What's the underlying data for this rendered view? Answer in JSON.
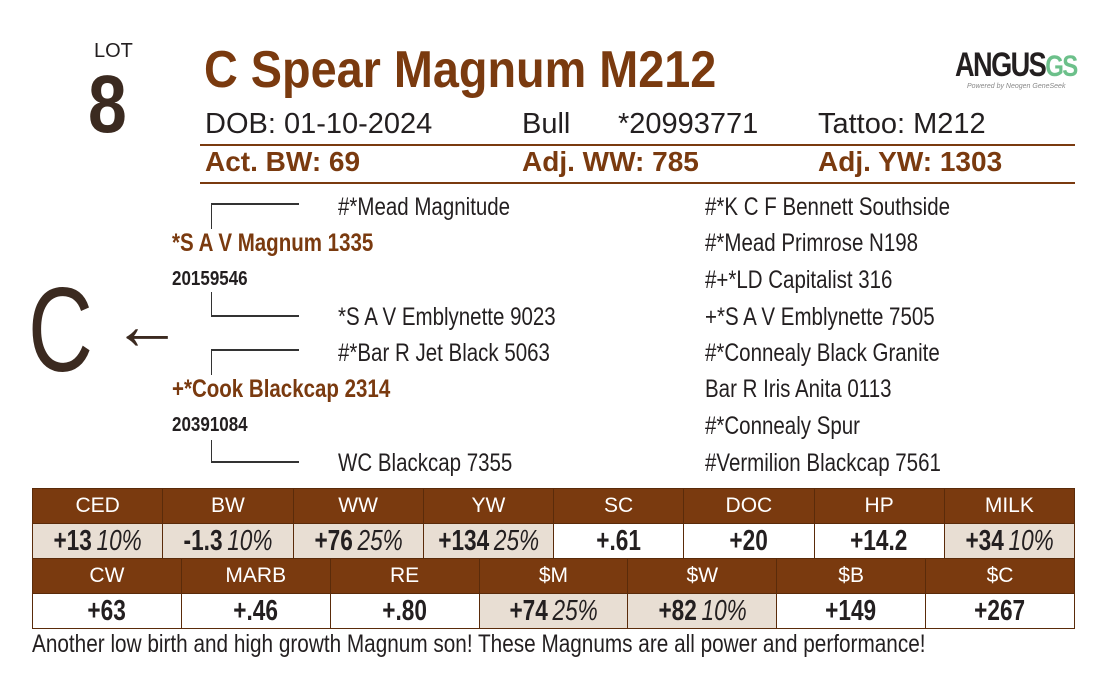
{
  "lot": {
    "label": "LOT",
    "number": "8"
  },
  "title": "C Spear Magnum M212",
  "logo": {
    "main": "ANGUS",
    "suffix": "GS",
    "tagline": "Powered by Neogen GeneSeek"
  },
  "info": {
    "dob_label": "DOB:",
    "dob": "01-10-2024",
    "sex": "Bull",
    "reg": "*20993771",
    "tattoo_label": "Tattoo:",
    "tattoo": "M212"
  },
  "weights": {
    "bw": "Act. BW: 69",
    "ww": "Adj. WW: 785",
    "yw": "Adj. YW: 1303"
  },
  "marker": {
    "letter": "C",
    "arrow": "←"
  },
  "pedigree": {
    "sire": {
      "name": "*S A V Magnum 1335",
      "reg": "20159546",
      "sire": "#*Mead Magnitude",
      "dam": "*S A V Emblynette 9023"
    },
    "dam": {
      "name": "+*Cook Blackcap 2314",
      "reg": "20391084",
      "sire": "#*Bar R Jet Black 5063",
      "dam": "WC Blackcap 7355"
    },
    "third": [
      "#*K C F Bennett Southside",
      "#*Mead Primrose N198",
      "#+*LD Capitalist 316",
      "+*S A V Emblynette 7505",
      "#*Connealy Black Granite",
      "Bar R Iris Anita 0113",
      "#*Connealy Spur",
      "#Vermilion Blackcap 7561"
    ]
  },
  "epds_row1": [
    {
      "label": "CED",
      "value": "+13",
      "pct": "10%"
    },
    {
      "label": "BW",
      "value": "-1.3",
      "pct": "10%"
    },
    {
      "label": "WW",
      "value": "+76",
      "pct": "25%"
    },
    {
      "label": "YW",
      "value": "+134",
      "pct": "25%"
    },
    {
      "label": "SC",
      "value": "+.61"
    },
    {
      "label": "DOC",
      "value": "+20"
    },
    {
      "label": "HP",
      "value": "+14.2"
    },
    {
      "label": "MILK",
      "value": "+34",
      "pct": "10%"
    }
  ],
  "epds_row2": [
    {
      "label": "CW",
      "value": "+63"
    },
    {
      "label": "MARB",
      "value": "+.46"
    },
    {
      "label": "RE",
      "value": "+.80"
    },
    {
      "label": "$M",
      "value": "+74",
      "pct": "25%"
    },
    {
      "label": "$W",
      "value": "+82",
      "pct": "10%"
    },
    {
      "label": "$B",
      "value": "+149"
    },
    {
      "label": "$C",
      "value": "+267"
    }
  ],
  "note": "Another low birth and high growth Magnum son! These Magnums are all power and performance!"
}
